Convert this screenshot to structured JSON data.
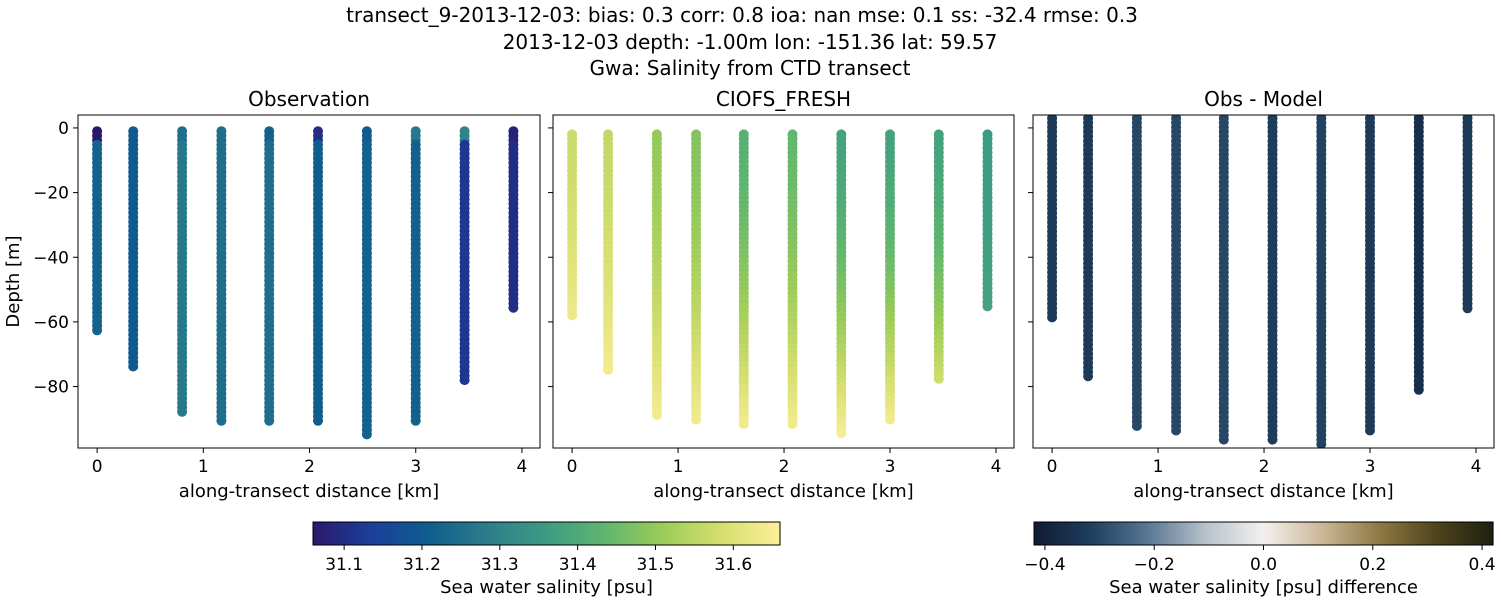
{
  "title_lines": [
    "transect_9-2013-12-03: bias: 0.3  corr: 0.8  ioa: nan  mse: 0.1  ss: -32.4  rmse: 0.3",
    "2013-12-03 depth: -1.00m lon: -151.36 lat: 59.57",
    "Gwa: Salinity from CTD transect"
  ],
  "chart_data": [
    {
      "type": "scatter",
      "title": "Observation",
      "xlabel": "along-transect distance [km]",
      "ylabel": "Depth [m]",
      "xlim": [
        -0.18,
        4.17
      ],
      "ylim": [
        -99,
        4
      ],
      "xticks": [
        0,
        1,
        2,
        3,
        4
      ],
      "yticks": [
        0,
        -20,
        -40,
        -60,
        -80
      ],
      "colormap": "haline",
      "clim": [
        31.06,
        31.66
      ],
      "casts": [
        {
          "x": 0.0,
          "top": -1,
          "bottom": -63,
          "value_top": 31.05,
          "value": 31.22
        },
        {
          "x": 0.34,
          "top": -1,
          "bottom": -75,
          "value_top": 31.2,
          "value": 31.2
        },
        {
          "x": 0.8,
          "top": -1,
          "bottom": -89,
          "value_top": 31.25,
          "value": 31.27
        },
        {
          "x": 1.17,
          "top": -1,
          "bottom": -92,
          "value_top": 31.25,
          "value": 31.25
        },
        {
          "x": 1.62,
          "top": -1,
          "bottom": -92,
          "value_top": 31.22,
          "value": 31.25
        },
        {
          "x": 2.08,
          "top": -1,
          "bottom": -92,
          "value_top": 31.1,
          "value": 31.21
        },
        {
          "x": 2.54,
          "top": -1,
          "bottom": -95,
          "value_top": 31.2,
          "value": 31.22
        },
        {
          "x": 3.0,
          "top": -1,
          "bottom": -91,
          "value_top": 31.27,
          "value": 31.22
        },
        {
          "x": 3.46,
          "top": -1,
          "bottom": -79,
          "value_top": 31.3,
          "value": 31.12
        },
        {
          "x": 3.92,
          "top": -1,
          "bottom": -56,
          "value_top": 31.08,
          "value": 31.1
        }
      ]
    },
    {
      "type": "scatter",
      "title": "CIOFS_FRESH",
      "xlim": [
        -0.18,
        4.17
      ],
      "ylim": [
        -99,
        4
      ],
      "xticks": [
        0,
        1,
        2,
        3,
        4
      ],
      "xlabel": "along-transect distance [km]",
      "colormap": "haline",
      "clim": [
        31.06,
        31.66
      ],
      "casts": [
        {
          "x": 0.0,
          "top": -2,
          "bottom": -58,
          "value_top": 31.57,
          "value_bottom": 31.63
        },
        {
          "x": 0.34,
          "top": -2,
          "bottom": -75,
          "value_top": 31.56,
          "value_bottom": 31.64
        },
        {
          "x": 0.8,
          "top": -2,
          "bottom": -89,
          "value_top": 31.5,
          "value_bottom": 31.64
        },
        {
          "x": 1.17,
          "top": -2,
          "bottom": -91,
          "value_top": 31.48,
          "value_bottom": 31.64
        },
        {
          "x": 1.62,
          "top": -2,
          "bottom": -92,
          "value_top": 31.42,
          "value_bottom": 31.64
        },
        {
          "x": 2.08,
          "top": -2,
          "bottom": -92,
          "value_top": 31.44,
          "value_bottom": 31.64
        },
        {
          "x": 2.54,
          "top": -2,
          "bottom": -95,
          "value_top": 31.38,
          "value_bottom": 31.65
        },
        {
          "x": 3.0,
          "top": -2,
          "bottom": -91,
          "value_top": 31.38,
          "value_bottom": 31.64
        },
        {
          "x": 3.46,
          "top": -2,
          "bottom": -79,
          "value_top": 31.38,
          "value_bottom": 31.58
        },
        {
          "x": 3.92,
          "top": -2,
          "bottom": -56,
          "value_top": 31.36,
          "value_bottom": 31.38
        }
      ]
    },
    {
      "type": "scatter",
      "title": "Obs - Model",
      "xlim": [
        -0.18,
        4.17
      ],
      "ylim": [
        -99,
        4
      ],
      "xticks": [
        0,
        1,
        2,
        3,
        4
      ],
      "xlabel": "along-transect distance [km]",
      "colormap": "diff",
      "clim": [
        -0.42,
        0.42
      ],
      "casts": [
        {
          "x": 0.0,
          "top": 3,
          "bottom": -59,
          "value": -0.33
        },
        {
          "x": 0.34,
          "top": 3,
          "bottom": -78,
          "value": -0.33
        },
        {
          "x": 0.8,
          "top": 3,
          "bottom": -93,
          "value": -0.3
        },
        {
          "x": 1.17,
          "top": 3,
          "bottom": -95,
          "value": -0.3
        },
        {
          "x": 1.62,
          "top": 3,
          "bottom": -97,
          "value": -0.3
        },
        {
          "x": 2.08,
          "top": 3,
          "bottom": -97,
          "value": -0.32
        },
        {
          "x": 2.54,
          "top": 3,
          "bottom": -99,
          "value": -0.31
        },
        {
          "x": 3.0,
          "top": 3,
          "bottom": -95,
          "value": -0.33
        },
        {
          "x": 3.46,
          "top": 3,
          "bottom": -82,
          "value": -0.36
        },
        {
          "x": 3.92,
          "top": 3,
          "bottom": -57,
          "value": -0.33
        }
      ]
    }
  ],
  "colorbars": [
    {
      "label": "Sea water salinity [psu]",
      "ticks": [
        "31.1",
        "31.2",
        "31.3",
        "31.4",
        "31.5",
        "31.6"
      ],
      "tick_values": [
        31.1,
        31.2,
        31.3,
        31.4,
        31.5,
        31.6
      ],
      "range": [
        31.06,
        31.66
      ],
      "colormap": "haline"
    },
    {
      "label": "Sea water salinity [psu] difference",
      "ticks": [
        "−0.4",
        "−0.2",
        "0.0",
        "0.2",
        "0.4"
      ],
      "tick_values": [
        -0.4,
        -0.2,
        0.0,
        0.2,
        0.4
      ],
      "range": [
        -0.42,
        0.42
      ],
      "colormap": "diff"
    }
  ],
  "colors": {
    "haline": [
      "#2a186c",
      "#1b3f9a",
      "#0f5e8e",
      "#2d7e8a",
      "#3d9b84",
      "#5fb66f",
      "#9ccc58",
      "#d6df6f",
      "#fdef9a"
    ],
    "diff": [
      "#0f1a33",
      "#1f3f5e",
      "#5a7894",
      "#b8c2cb",
      "#f3f1ee",
      "#cdb89a",
      "#8f7a45",
      "#4f451c",
      "#1c2010"
    ]
  }
}
